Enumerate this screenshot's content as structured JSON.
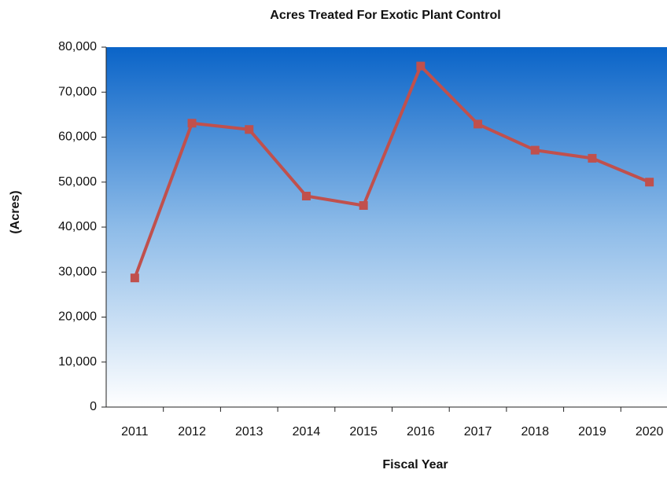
{
  "chart_data": {
    "type": "line",
    "title": "Acres Treated For Exotic Plant Control",
    "x_label": "Fiscal Year",
    "y_label": "(Acres)",
    "categories": [
      "2011",
      "2012",
      "2013",
      "2014",
      "2015",
      "2016",
      "2017",
      "2018",
      "2019",
      "2020"
    ],
    "series": [
      {
        "name": "Acres",
        "color": "#c0504d",
        "values": [
          28700,
          63100,
          61700,
          46900,
          44800,
          75800,
          62900,
          57100,
          55300,
          50000
        ]
      }
    ],
    "ylim": [
      0,
      80000
    ],
    "yticks": [
      0,
      {
        "value": 10000,
        "label": "10,000"
      },
      {
        "value": 20000,
        "label": "20,000"
      },
      {
        "value": 30000,
        "label": "30,000"
      },
      {
        "value": 40000,
        "label": "40,000"
      },
      {
        "value": 50000,
        "label": "50,000"
      },
      {
        "value": 60000,
        "label": "60,000"
      },
      {
        "value": 70000,
        "label": "70,000"
      },
      {
        "value": 80000,
        "label": "80,000"
      }
    ]
  }
}
